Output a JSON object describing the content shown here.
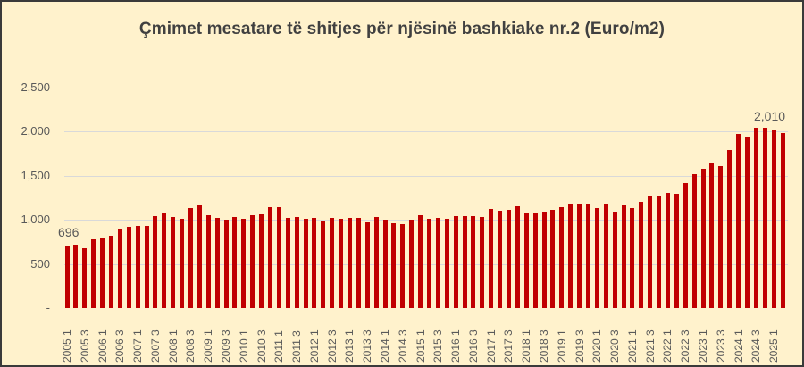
{
  "chart_data": {
    "type": "bar",
    "title": "Çmimet mesatare të shitjes për njësinë bashkiake nr.2 (Euro/m2)",
    "xlabel": "",
    "ylabel": "",
    "ylim": [
      0,
      2500
    ],
    "yticks": [
      "-",
      "500",
      "1,000",
      "1,500",
      "2,000",
      "2,500"
    ],
    "ytick_values": [
      0,
      500,
      1000,
      1500,
      2000,
      2500
    ],
    "grid": true,
    "legend": null,
    "bar_color": "#c00000",
    "background": "#fff2cc",
    "categories": [
      "2005 1",
      "2005 2",
      "2005 3",
      "2005 4",
      "2006 1",
      "2006 2",
      "2006 3",
      "2006 4",
      "2007 1",
      "2007 2",
      "2007 3",
      "2007 4",
      "2008 1",
      "2008 2",
      "2008 3",
      "2008 4",
      "2009 1",
      "2009 2",
      "2009 3",
      "2009 4",
      "2010 1",
      "2010 2",
      "2010 3",
      "2010 4",
      "2011 1",
      "2011 2",
      "2011 3",
      "2011 4",
      "2012 1",
      "2012 2",
      "2012 3",
      "2012 4",
      "2013 1",
      "2013 2",
      "2013 3",
      "2013 4",
      "2014 1",
      "2014 2",
      "2014 3",
      "2014 4",
      "2015 1",
      "2015 2",
      "2015 3",
      "2015 4",
      "2016 1",
      "2016 2",
      "2016 3",
      "2016 4",
      "2017 1",
      "2017 2",
      "2017 3",
      "2017 4",
      "2018 1",
      "2018 2",
      "2018 3",
      "2018 4",
      "2019 1",
      "2019 2",
      "2019 3",
      "2019 4",
      "2020 1",
      "2020 2",
      "2020 3",
      "2020 4",
      "2021 1",
      "2021 2",
      "2021 3",
      "2021 4",
      "2022 1",
      "2022 2",
      "2022 3",
      "2022 4",
      "2023 1",
      "2023 2",
      "2023 3",
      "2023 4",
      "2024 1",
      "2024 2",
      "2024 3",
      "2024 4",
      "2025 1",
      "2025 2"
    ],
    "visible_tick_labels": [
      "2005 1",
      "2005 3",
      "2006 1",
      "2006 3",
      "2007 1",
      "2007 3",
      "2008 1",
      "2008 3",
      "2009 1",
      "2009 3",
      "2010 1",
      "2010 3",
      "2011 1",
      "2011 3",
      "2012 1",
      "2012 3",
      "2013 1",
      "2013 3",
      "2014 1",
      "2014 3",
      "2015 1",
      "2015 3",
      "2016 1",
      "2016 3",
      "2017 1",
      "2017 3",
      "2018 1",
      "2018 3",
      "2019 1",
      "2019 3",
      "2020 1",
      "2020 3",
      "2021 1",
      "2021 3",
      "2022 1",
      "2022 3",
      "2023 1",
      "2023 3",
      "2024 1",
      "2024 3",
      "2025 1"
    ],
    "values": [
      696,
      720,
      680,
      775,
      795,
      815,
      900,
      925,
      935,
      935,
      1040,
      1080,
      1035,
      1010,
      1130,
      1160,
      1050,
      1025,
      1000,
      1030,
      1015,
      1050,
      1060,
      1140,
      1140,
      1025,
      1035,
      1010,
      1025,
      985,
      1025,
      1015,
      1025,
      1025,
      970,
      1035,
      1000,
      965,
      950,
      1000,
      1055,
      1015,
      1020,
      1010,
      1040,
      1045,
      1040,
      1030,
      1125,
      1100,
      1110,
      1150,
      1080,
      1080,
      1095,
      1118,
      1140,
      1185,
      1170,
      1170,
      1135,
      1175,
      1090,
      1160,
      1135,
      1200,
      1263,
      1280,
      1303,
      1296,
      1414,
      1515,
      1580,
      1650,
      1613,
      1795,
      1970,
      1943,
      2044,
      2044,
      2010,
      1987
    ],
    "annotations": [
      {
        "index": 0,
        "text": "696"
      },
      {
        "index": 80,
        "text": "2,010"
      }
    ]
  }
}
